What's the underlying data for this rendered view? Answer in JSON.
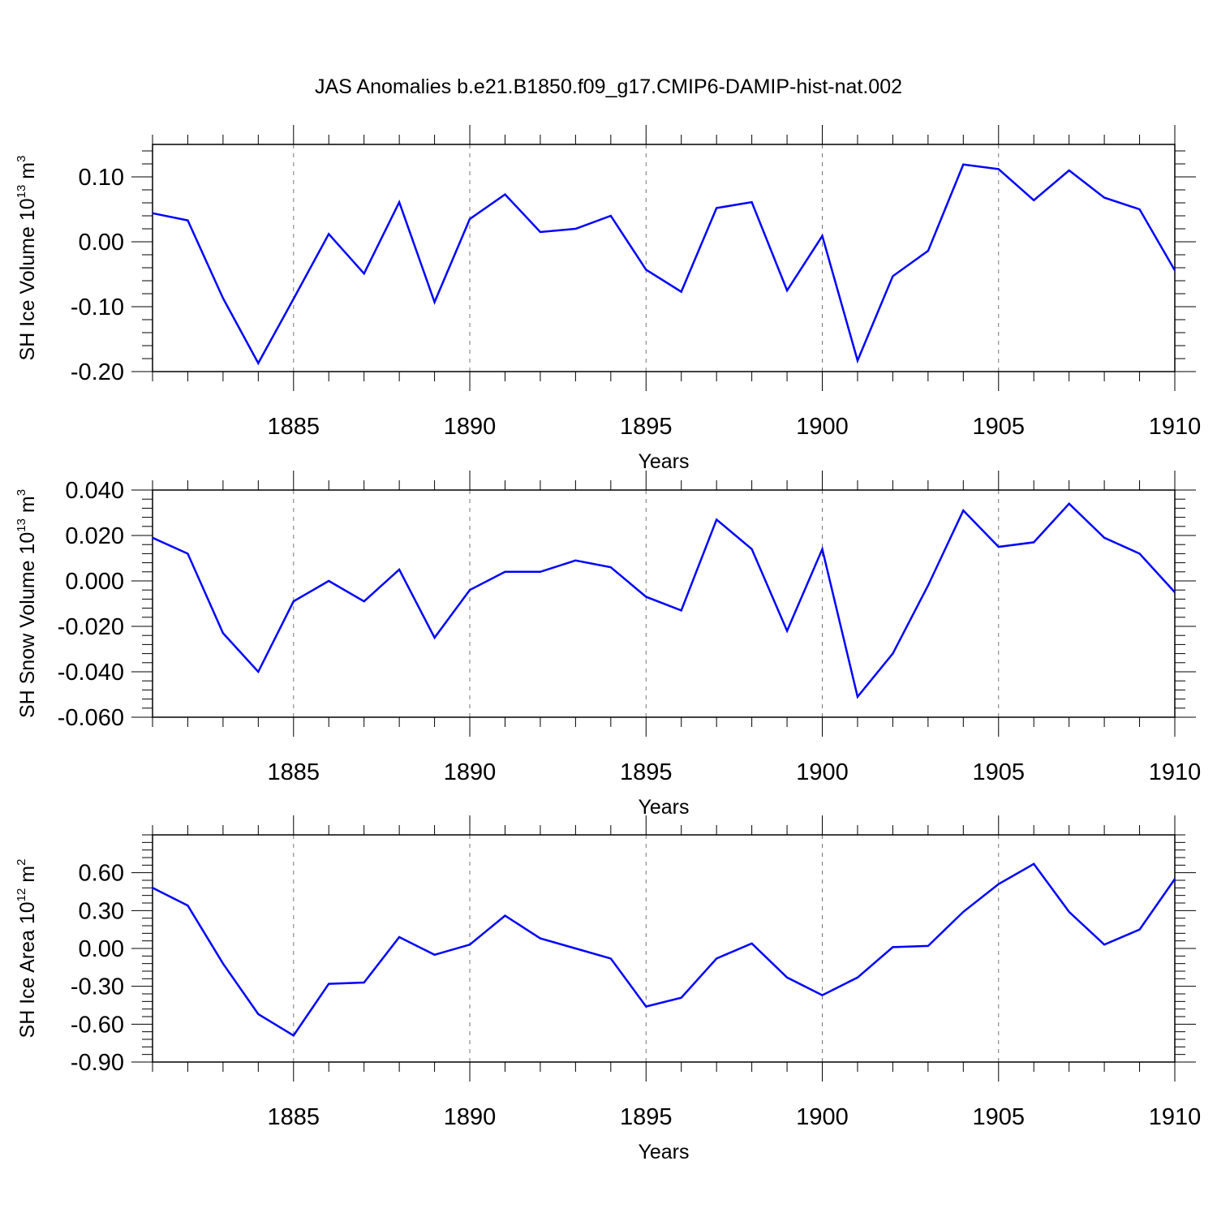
{
  "title": "JAS Anomalies b.e21.B1850.f09_g17.CMIP6-DAMIP-hist-nat.002",
  "line_color": "#0000ff",
  "chart_data": [
    {
      "type": "line",
      "ylabel": "SH Ice Volume 10",
      "ylabel_exp": "13",
      "ylabel_unit": " m",
      "ylabel_unit_exp": "3",
      "xlabel": "Years",
      "xlim": [
        1881,
        1910
      ],
      "ylim": [
        -0.2,
        0.15
      ],
      "yticks": [
        -0.2,
        -0.1,
        0.0,
        0.1
      ],
      "ytick_labels": [
        "-0.20",
        "-0.10",
        "0.00",
        "0.10"
      ],
      "xticks": [
        1885,
        1890,
        1895,
        1900,
        1905,
        1910
      ],
      "xtick_labels": [
        "1885",
        "1890",
        "1895",
        "1900",
        "1905",
        "1910"
      ],
      "x": [
        1881,
        1882,
        1883,
        1884,
        1885,
        1886,
        1887,
        1888,
        1889,
        1890,
        1891,
        1892,
        1893,
        1894,
        1895,
        1896,
        1897,
        1898,
        1899,
        1900,
        1901,
        1902,
        1903,
        1904,
        1905,
        1906,
        1907,
        1908,
        1909,
        1910
      ],
      "y": [
        0.044,
        0.033,
        -0.087,
        -0.187,
        -0.088,
        0.012,
        -0.049,
        0.061,
        -0.093,
        0.035,
        0.073,
        0.015,
        0.02,
        0.04,
        -0.043,
        -0.077,
        0.052,
        0.061,
        -0.075,
        0.009,
        -0.183,
        -0.053,
        -0.014,
        0.119,
        0.112,
        0.064,
        0.11,
        0.068,
        0.05,
        -0.044
      ]
    },
    {
      "type": "line",
      "ylabel": "SH Snow Volume 10",
      "ylabel_exp": "13",
      "ylabel_unit": " m",
      "ylabel_unit_exp": "3",
      "xlabel": "Years",
      "xlim": [
        1881,
        1910
      ],
      "ylim": [
        -0.06,
        0.04
      ],
      "yticks": [
        -0.06,
        -0.04,
        -0.02,
        0.0,
        0.02,
        0.04
      ],
      "ytick_labels": [
        "-0.060",
        "-0.040",
        "-0.020",
        "0.000",
        "0.020",
        "0.040"
      ],
      "xticks": [
        1885,
        1890,
        1895,
        1900,
        1905,
        1910
      ],
      "xtick_labels": [
        "1885",
        "1890",
        "1895",
        "1900",
        "1905",
        "1910"
      ],
      "x": [
        1881,
        1882,
        1883,
        1884,
        1885,
        1886,
        1887,
        1888,
        1889,
        1890,
        1891,
        1892,
        1893,
        1894,
        1895,
        1896,
        1897,
        1898,
        1899,
        1900,
        1901,
        1902,
        1903,
        1904,
        1905,
        1906,
        1907,
        1908,
        1909,
        1910
      ],
      "y": [
        0.019,
        0.012,
        -0.023,
        -0.04,
        -0.009,
        0.0,
        -0.009,
        0.005,
        -0.025,
        -0.004,
        0.004,
        0.004,
        0.009,
        0.006,
        -0.007,
        -0.013,
        0.027,
        0.014,
        -0.022,
        0.014,
        -0.051,
        -0.032,
        -0.002,
        0.031,
        0.015,
        0.017,
        0.034,
        0.019,
        0.012,
        -0.005
      ]
    },
    {
      "type": "line",
      "ylabel": "SH Ice Area 10",
      "ylabel_exp": "12",
      "ylabel_unit": " m",
      "ylabel_unit_exp": "2",
      "xlabel": "Years",
      "xlim": [
        1881,
        1910
      ],
      "ylim": [
        -0.9,
        0.9
      ],
      "yticks": [
        -0.9,
        -0.6,
        -0.3,
        0.0,
        0.3,
        0.6
      ],
      "ytick_labels": [
        "-0.90",
        "-0.60",
        "-0.30",
        "0.00",
        "0.30",
        "0.60"
      ],
      "xticks": [
        1885,
        1890,
        1895,
        1900,
        1905,
        1910
      ],
      "xtick_labels": [
        "1885",
        "1890",
        "1895",
        "1900",
        "1905",
        "1910"
      ],
      "x": [
        1881,
        1882,
        1883,
        1884,
        1885,
        1886,
        1887,
        1888,
        1889,
        1890,
        1891,
        1892,
        1893,
        1894,
        1895,
        1896,
        1897,
        1898,
        1899,
        1900,
        1901,
        1902,
        1903,
        1904,
        1905,
        1906,
        1907,
        1908,
        1909,
        1910
      ],
      "y": [
        0.48,
        0.34,
        -0.12,
        -0.52,
        -0.69,
        -0.28,
        -0.27,
        0.09,
        -0.05,
        0.03,
        0.26,
        0.08,
        0.0,
        -0.08,
        -0.46,
        -0.39,
        -0.08,
        0.04,
        -0.23,
        -0.37,
        -0.23,
        0.01,
        0.02,
        0.29,
        0.51,
        0.67,
        0.29,
        0.03,
        0.15,
        0.55
      ]
    }
  ]
}
